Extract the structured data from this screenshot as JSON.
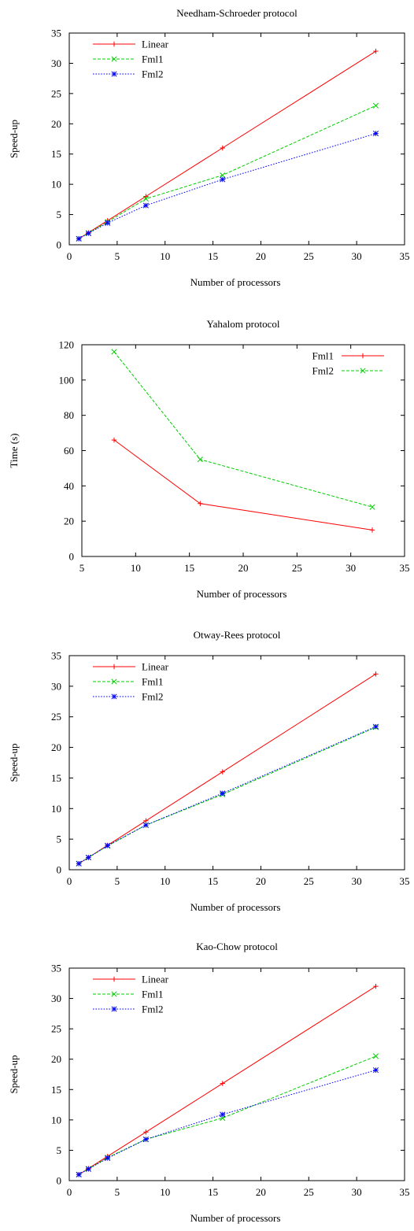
{
  "chart_data": [
    {
      "type": "line",
      "title": "Needham-Schroeder protocol",
      "xlabel": "Number of processors",
      "ylabel": "Speed-up",
      "xlim": [
        0,
        35
      ],
      "ylim": [
        0,
        35
      ],
      "xticks": [
        0,
        5,
        10,
        15,
        20,
        25,
        30,
        35
      ],
      "yticks": [
        0,
        5,
        10,
        15,
        20,
        25,
        30,
        35
      ],
      "grid": false,
      "legend_position": "top-left",
      "legend_style": "symbol-after",
      "series": [
        {
          "name": "Linear",
          "color": "#ff0000",
          "dash": "solid",
          "marker": "plus",
          "x": [
            1,
            2,
            4,
            8,
            16,
            32
          ],
          "y": [
            1,
            2,
            4,
            8,
            16,
            32
          ]
        },
        {
          "name": "Fml1",
          "color": "#00cc00",
          "dash": "dashed",
          "marker": "cross",
          "x": [
            1,
            2,
            4,
            8,
            16,
            32
          ],
          "y": [
            1,
            1.95,
            3.8,
            7.6,
            11.5,
            23
          ]
        },
        {
          "name": "Fml2",
          "color": "#0000ff",
          "dash": "dotted",
          "marker": "star",
          "x": [
            1,
            2,
            4,
            8,
            16,
            32
          ],
          "y": [
            1,
            1.9,
            3.6,
            6.5,
            10.8,
            18.4
          ]
        }
      ]
    },
    {
      "type": "line",
      "title": "Yahalom protocol",
      "xlabel": "Number of processors",
      "ylabel": "Time (s)",
      "xlim": [
        5,
        35
      ],
      "ylim": [
        0,
        120
      ],
      "xticks": [
        5,
        10,
        15,
        20,
        25,
        30,
        35
      ],
      "yticks": [
        0,
        20,
        40,
        60,
        80,
        100,
        120
      ],
      "grid": false,
      "legend_position": "top-right",
      "legend_style": "symbol-after",
      "series": [
        {
          "name": "Fml1",
          "color": "#ff0000",
          "dash": "solid",
          "marker": "plus",
          "x": [
            8,
            16,
            32
          ],
          "y": [
            66,
            30,
            15
          ]
        },
        {
          "name": "Fml2",
          "color": "#00cc00",
          "dash": "dashed",
          "marker": "cross",
          "x": [
            8,
            16,
            32
          ],
          "y": [
            116,
            55,
            28
          ]
        }
      ]
    },
    {
      "type": "line",
      "title": "Otway-Rees protocol",
      "xlabel": "Number of processors",
      "ylabel": "Speed-up",
      "xlim": [
        0,
        35
      ],
      "ylim": [
        0,
        35
      ],
      "xticks": [
        0,
        5,
        10,
        15,
        20,
        25,
        30,
        35
      ],
      "yticks": [
        0,
        5,
        10,
        15,
        20,
        25,
        30,
        35
      ],
      "grid": false,
      "legend_position": "top-left",
      "legend_style": "symbol-first",
      "series": [
        {
          "name": "Linear",
          "color": "#ff0000",
          "dash": "solid",
          "marker": "plus",
          "x": [
            1,
            2,
            4,
            8,
            16,
            32
          ],
          "y": [
            1,
            2,
            4,
            8,
            16,
            32
          ]
        },
        {
          "name": "Fml1",
          "color": "#00cc00",
          "dash": "dashed",
          "marker": "cross",
          "x": [
            1,
            2,
            4,
            8,
            16,
            32
          ],
          "y": [
            1,
            2,
            3.9,
            7.3,
            12.3,
            23.3
          ]
        },
        {
          "name": "Fml2",
          "color": "#0000ff",
          "dash": "dotted",
          "marker": "star",
          "x": [
            1,
            2,
            4,
            8,
            16,
            32
          ],
          "y": [
            1,
            2,
            3.95,
            7.3,
            12.5,
            23.4
          ]
        }
      ]
    },
    {
      "type": "line",
      "title": "Kao-Chow protocol",
      "xlabel": "Number of processors",
      "ylabel": "Speed-up",
      "xlim": [
        0,
        35
      ],
      "ylim": [
        0,
        35
      ],
      "xticks": [
        0,
        5,
        10,
        15,
        20,
        25,
        30,
        35
      ],
      "yticks": [
        0,
        5,
        10,
        15,
        20,
        25,
        30,
        35
      ],
      "grid": false,
      "legend_position": "top-left",
      "legend_style": "symbol-first",
      "series": [
        {
          "name": "Linear",
          "color": "#ff0000",
          "dash": "solid",
          "marker": "plus",
          "x": [
            1,
            2,
            4,
            8,
            16,
            32
          ],
          "y": [
            1,
            2,
            4,
            8,
            16,
            32
          ]
        },
        {
          "name": "Fml1",
          "color": "#00cc00",
          "dash": "dashed",
          "marker": "cross",
          "x": [
            1,
            2,
            4,
            8,
            16,
            32
          ],
          "y": [
            1,
            1.95,
            3.8,
            6.8,
            10.3,
            20.5
          ]
        },
        {
          "name": "Fml2",
          "color": "#0000ff",
          "dash": "dotted",
          "marker": "star",
          "x": [
            1,
            2,
            4,
            8,
            16,
            32
          ],
          "y": [
            1,
            1.9,
            3.7,
            6.8,
            10.9,
            18.2
          ]
        }
      ]
    }
  ]
}
